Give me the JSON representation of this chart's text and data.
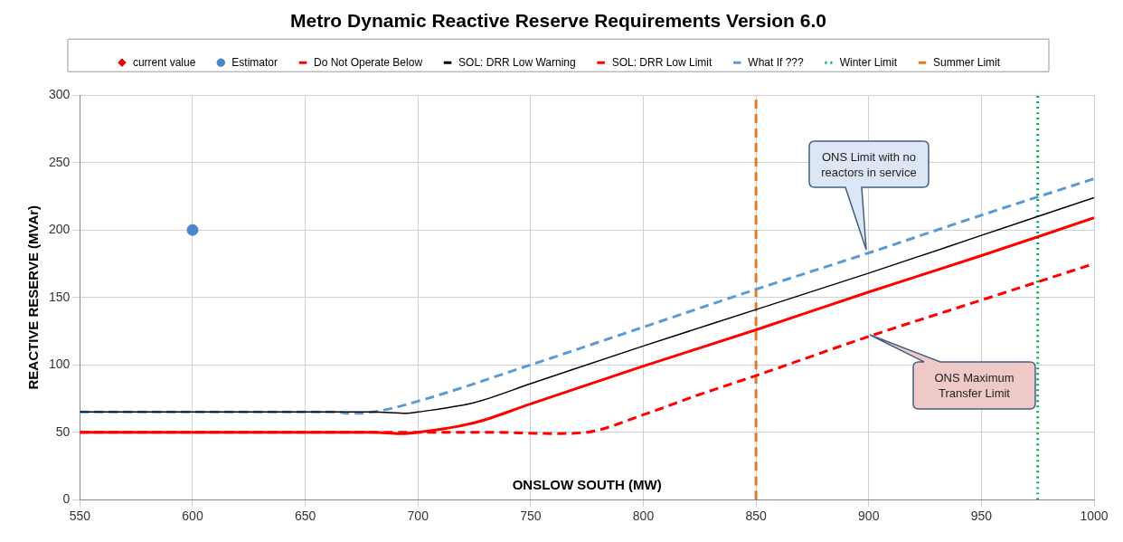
{
  "chart_data": {
    "type": "line",
    "title": "Metro Dynamic Reactive Reserve Requirements Version 6.0",
    "xlabel": "ONSLOW SOUTH (MW)",
    "ylabel": "REACTIVE RESERVE (MVAr)",
    "xlim": [
      550,
      1000
    ],
    "xticks": [
      550,
      600,
      650,
      700,
      750,
      800,
      850,
      900,
      950,
      1000
    ],
    "ylim": [
      0,
      300
    ],
    "yticks": [
      0,
      50,
      100,
      150,
      200,
      250,
      300
    ],
    "grid": true,
    "legend": "top",
    "marker": "none",
    "series": [
      {
        "name": "current value",
        "type": "scatter",
        "marker": "diamond",
        "color": "#e00000"
      },
      {
        "name": "Estimator",
        "type": "scatter",
        "marker": "circle",
        "color": "#4a86c8",
        "x": [
          600
        ],
        "values": [
          200
        ]
      },
      {
        "name": "Do Not Operate Below",
        "type": "line",
        "line_style": "dashed",
        "color": "#ff0000",
        "x": [
          550,
          600,
          650,
          700,
          730,
          760,
          775,
          800,
          825,
          850,
          900,
          950,
          1000
        ],
        "values": [
          50,
          50,
          50,
          50,
          50,
          49,
          50,
          63,
          78,
          92,
          121,
          148,
          175
        ]
      },
      {
        "name": "SOL: DRR Low Warning",
        "type": "line",
        "line_style": "solid",
        "color": "#000000",
        "x": [
          550,
          600,
          650,
          680,
          695,
          700,
          725,
          750,
          800,
          850,
          900,
          950,
          1000
        ],
        "values": [
          65,
          65,
          65,
          65,
          64,
          65,
          72,
          86,
          114,
          141,
          168,
          196,
          224
        ]
      },
      {
        "name": "SOL: DRR Low Limit",
        "type": "line",
        "line_style": "solid",
        "color": "#ff0000",
        "x": [
          550,
          600,
          650,
          680,
          692,
          700,
          725,
          750,
          800,
          850,
          900,
          950,
          1000
        ],
        "values": [
          50,
          50,
          50,
          50,
          49,
          50,
          57,
          71,
          99,
          126,
          154,
          181,
          209
        ]
      },
      {
        "name": "What If ???",
        "type": "line",
        "line_style": "dashed",
        "color": "#5b9bd5",
        "x": [
          550,
          600,
          650,
          665,
          668,
          680,
          700,
          750,
          800,
          850,
          900,
          950,
          1000
        ],
        "values": [
          65,
          65,
          65,
          65,
          64,
          65,
          73,
          100,
          128,
          156,
          183,
          211,
          238
        ]
      },
      {
        "name": "Winter Limit",
        "type": "line",
        "line_style": "dotted",
        "color": "#00b050",
        "x": [
          975,
          975
        ],
        "values": [
          0,
          300
        ]
      },
      {
        "name": "Summer Limit",
        "type": "line",
        "line_style": "dashed",
        "color": "#e07b28",
        "x": [
          850,
          850
        ],
        "values": [
          0,
          300
        ]
      }
    ],
    "annotations": [
      "ONS Limit with no reactors in service",
      "ONS Maximum Transfer Limit"
    ]
  }
}
